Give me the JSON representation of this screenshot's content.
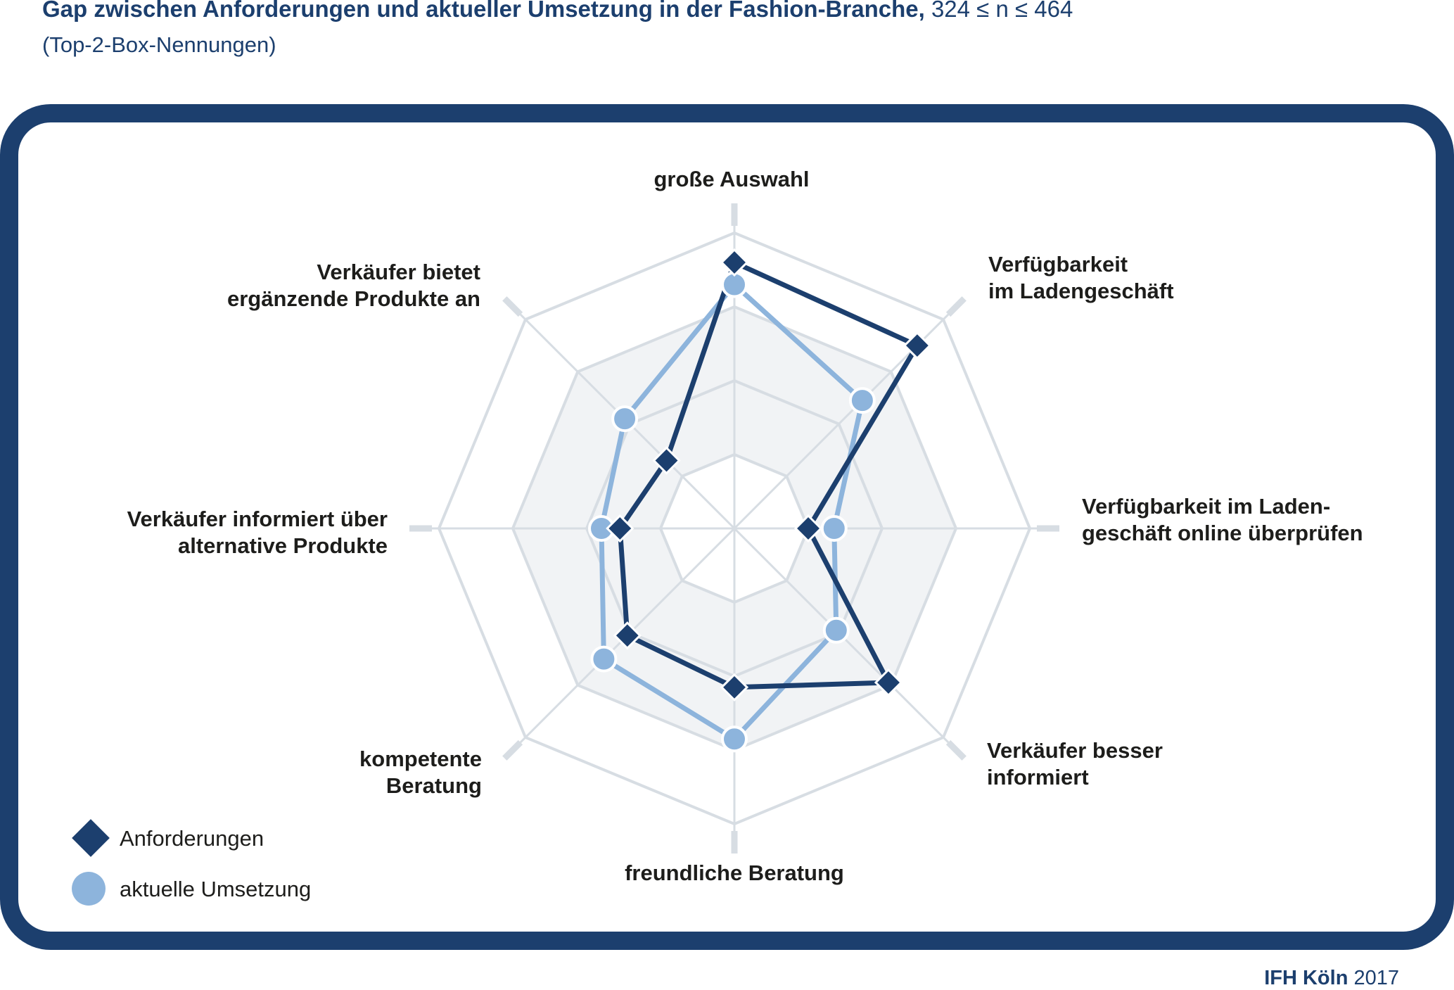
{
  "header": {
    "title": "Gap zwischen Anforderungen und aktueller Umsetzung in der Fashion-Branche,",
    "title_n": "324 ≤ n ≤ 464",
    "subtitle": "(Top-2-Box-Nennungen)"
  },
  "footer": {
    "source_strong": "IFH Köln",
    "source_year": "2017"
  },
  "legend": {
    "items": [
      {
        "label": "Anforderungen",
        "marker": "diamond-icon",
        "color": "#1c3f6e"
      },
      {
        "label": "aktuelle Umsetzung",
        "marker": "circle-icon",
        "color": "#8db4dc"
      }
    ]
  },
  "colors": {
    "requirements": "#1c3f6e",
    "implementation": "#8db4dc",
    "grid": "#d7dde3",
    "band": "#f1f3f5"
  },
  "chart_data": {
    "type": "radar",
    "title": "Gap zwischen Anforderungen und aktueller Umsetzung in der Fashion-Branche, 324 ≤ n ≤ 464",
    "subtitle": "(Top-2-Box-Nennungen)",
    "axes": [
      {
        "label": [
          "große Auswahl"
        ],
        "anchor": "middle"
      },
      {
        "label": [
          "Verfügbarkeit",
          "im Ladengeschäft"
        ],
        "anchor": "start"
      },
      {
        "label": [
          "Verfügbarkeit im Laden-",
          "geschäft online überprüfen"
        ],
        "anchor": "start"
      },
      {
        "label": [
          "Verkäufer besser",
          "informiert"
        ],
        "anchor": "start"
      },
      {
        "label": [
          "freundliche Beratung"
        ],
        "anchor": "middle"
      },
      {
        "label": [
          "kompetente",
          "Beratung"
        ],
        "anchor": "end"
      },
      {
        "label": [
          "Verkäufer informiert über",
          "alternative Produkte"
        ],
        "anchor": "end"
      },
      {
        "label": [
          "Verkäufer bietet",
          "ergänzende Produkte an"
        ],
        "anchor": "end"
      }
    ],
    "rings": 4,
    "shaded_ring_band": [
      1,
      3
    ],
    "range": [
      0,
      4
    ],
    "series": [
      {
        "name": "Anforderungen",
        "marker": "diamond",
        "values": [
          3.6,
          3.5,
          1.0,
          2.95,
          2.15,
          2.05,
          1.55,
          1.3
        ]
      },
      {
        "name": "aktuelle Umsetzung",
        "marker": "circle",
        "values": [
          3.3,
          2.45,
          1.35,
          1.95,
          2.85,
          2.5,
          1.8,
          2.1
        ]
      }
    ]
  }
}
